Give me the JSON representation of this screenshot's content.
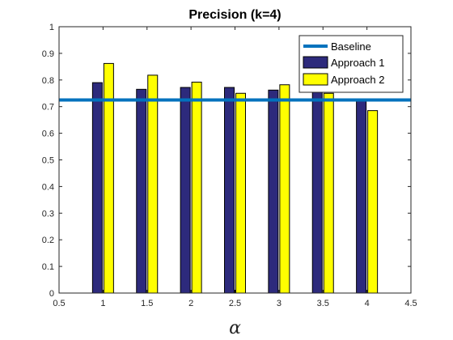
{
  "chart_data": {
    "type": "bar",
    "title": "Precision (k=4)",
    "xlabel": "α",
    "ylabel": "",
    "x": [
      1,
      1.5,
      2,
      2.5,
      3,
      3.5,
      4
    ],
    "xlim": [
      0.5,
      4.5
    ],
    "ylim": [
      0,
      1
    ],
    "xticks": [
      "0.5",
      "1",
      "1.5",
      "2",
      "2.5",
      "3",
      "3.5",
      "4",
      "4.5"
    ],
    "yticks": [
      "0",
      "0.1",
      "0.2",
      "0.3",
      "0.4",
      "0.5",
      "0.6",
      "0.7",
      "0.8",
      "0.9",
      "1"
    ],
    "series": [
      {
        "name": "Approach 1",
        "values": [
          0.79,
          0.765,
          0.772,
          0.772,
          0.762,
          0.76,
          0.727
        ],
        "color": "#2d2a7c"
      },
      {
        "name": "Approach 2",
        "values": [
          0.862,
          0.818,
          0.792,
          0.75,
          0.782,
          0.75,
          0.685
        ],
        "color": "#ffff00"
      }
    ],
    "baseline": {
      "name": "Baseline",
      "value": 0.725,
      "color": "#0072bd"
    },
    "grid": false,
    "legend": "top-right"
  }
}
